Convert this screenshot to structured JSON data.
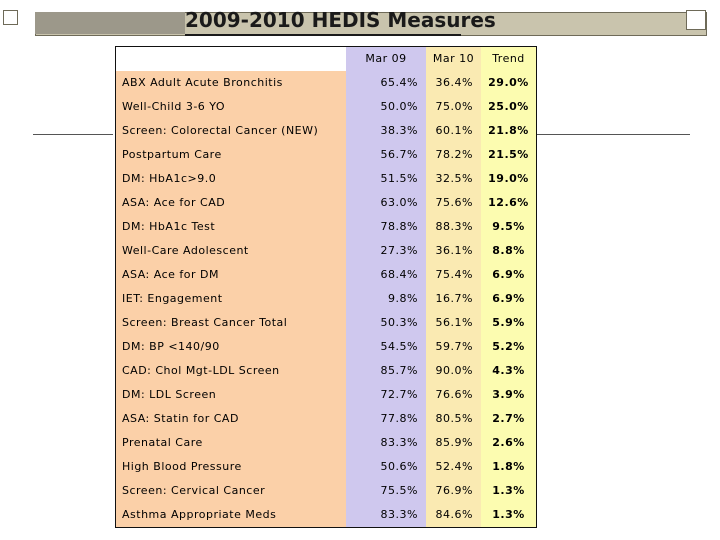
{
  "title": "2009-2010 HEDIS Measures",
  "table": {
    "headers": [
      "",
      "Mar 09",
      "Mar 10",
      "Trend"
    ],
    "rows": [
      {
        "measure": "ABX Adult Acute Bronchitis",
        "mar09": "65.4%",
        "mar10": "36.4%",
        "trend": "29.0%"
      },
      {
        "measure": "Well-Child 3-6 YO",
        "mar09": "50.0%",
        "mar10": "75.0%",
        "trend": "25.0%"
      },
      {
        "measure": "Screen: Colorectal Cancer (NEW)",
        "mar09": "38.3%",
        "mar10": "60.1%",
        "trend": "21.8%"
      },
      {
        "measure": "Postpartum Care",
        "mar09": "56.7%",
        "mar10": "78.2%",
        "trend": "21.5%"
      },
      {
        "measure": "DM: HbA1c>9.0",
        "mar09": "51.5%",
        "mar10": "32.5%",
        "trend": "19.0%"
      },
      {
        "measure": "ASA: Ace for CAD",
        "mar09": "63.0%",
        "mar10": "75.6%",
        "trend": "12.6%"
      },
      {
        "measure": "DM: HbA1c Test",
        "mar09": "78.8%",
        "mar10": "88.3%",
        "trend": "9.5%"
      },
      {
        "measure": "Well-Care Adolescent",
        "mar09": "27.3%",
        "mar10": "36.1%",
        "trend": "8.8%"
      },
      {
        "measure": "ASA: Ace for DM",
        "mar09": "68.4%",
        "mar10": "75.4%",
        "trend": "6.9%"
      },
      {
        "measure": "IET: Engagement",
        "mar09": "9.8%",
        "mar10": "16.7%",
        "trend": "6.9%"
      },
      {
        "measure": "Screen: Breast Cancer Total",
        "mar09": "50.3%",
        "mar10": "56.1%",
        "trend": "5.9%"
      },
      {
        "measure": "DM: BP <140/90",
        "mar09": "54.5%",
        "mar10": "59.7%",
        "trend": "5.2%"
      },
      {
        "measure": "CAD: Chol Mgt-LDL Screen",
        "mar09": "85.7%",
        "mar10": "90.0%",
        "trend": "4.3%"
      },
      {
        "measure": "DM: LDL Screen",
        "mar09": "72.7%",
        "mar10": "76.6%",
        "trend": "3.9%"
      },
      {
        "measure": "ASA: Statin for CAD",
        "mar09": "77.8%",
        "mar10": "80.5%",
        "trend": "2.7%"
      },
      {
        "measure": "Prenatal Care",
        "mar09": "83.3%",
        "mar10": "85.9%",
        "trend": "2.6%"
      },
      {
        "measure": "High Blood Pressure",
        "mar09": "50.6%",
        "mar10": "52.4%",
        "trend": "1.8%"
      },
      {
        "measure": "Screen: Cervical Cancer",
        "mar09": "75.5%",
        "mar10": "76.9%",
        "trend": "1.3%"
      },
      {
        "measure": "Asthma Appropriate Meds",
        "mar09": "83.3%",
        "mar10": "84.6%",
        "trend": "1.3%"
      }
    ]
  },
  "colors": {
    "measure_column": "#fbd0a8",
    "mar09_column": "#cfc8ee",
    "mar10_column": "#faeab2",
    "trend_column": "#fcfcb0",
    "title_bar": "#c9c4ad"
  }
}
